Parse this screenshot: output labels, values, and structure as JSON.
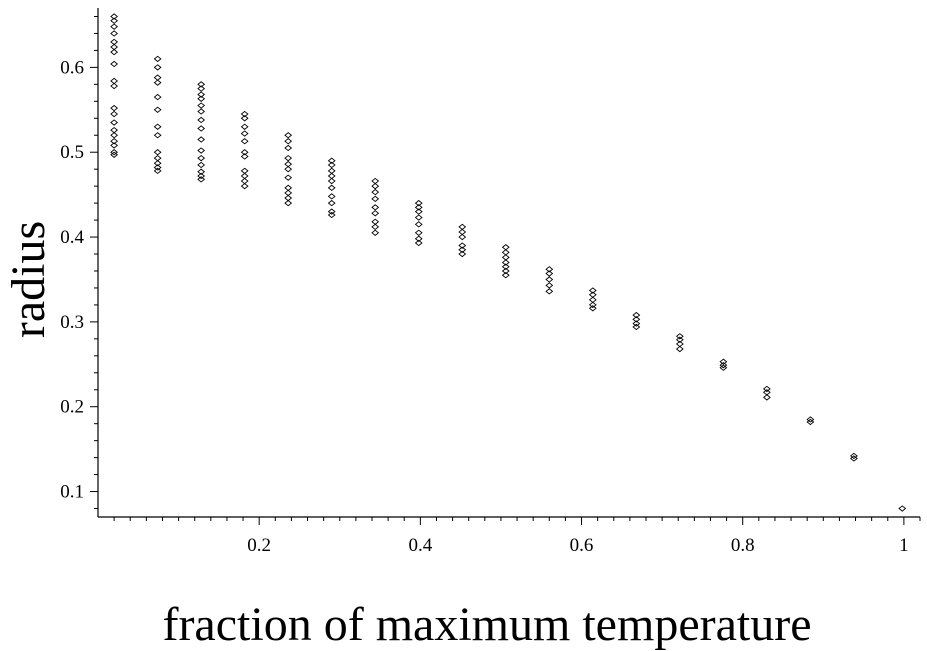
{
  "chart_data": {
    "type": "scatter",
    "xlabel": "fraction of maximum temperature",
    "ylabel": "radius",
    "xlim": [
      0.0,
      1.02
    ],
    "ylim": [
      0.07,
      0.67
    ],
    "x_ticks": [
      0.2,
      0.4,
      0.6,
      0.8,
      1.0
    ],
    "x_tick_labels": [
      "0.2",
      "0.4",
      "0.6",
      "0.8",
      "1"
    ],
    "y_ticks": [
      0.1,
      0.2,
      0.3,
      0.4,
      0.5,
      0.6
    ],
    "y_tick_labels": [
      "0.1",
      "0.2",
      "0.3",
      "0.4",
      "0.5",
      "0.6"
    ],
    "grid": false,
    "marker": "diamond",
    "series": [
      {
        "points": [
          {
            "x": 0.02,
            "y": 0.66
          },
          {
            "x": 0.02,
            "y": 0.655
          },
          {
            "x": 0.02,
            "y": 0.648
          },
          {
            "x": 0.02,
            "y": 0.64
          },
          {
            "x": 0.02,
            "y": 0.63
          },
          {
            "x": 0.02,
            "y": 0.624
          },
          {
            "x": 0.02,
            "y": 0.618
          },
          {
            "x": 0.02,
            "y": 0.604
          },
          {
            "x": 0.02,
            "y": 0.584
          },
          {
            "x": 0.02,
            "y": 0.578
          },
          {
            "x": 0.02,
            "y": 0.552
          },
          {
            "x": 0.02,
            "y": 0.545
          },
          {
            "x": 0.02,
            "y": 0.535
          },
          {
            "x": 0.02,
            "y": 0.526
          },
          {
            "x": 0.02,
            "y": 0.52
          },
          {
            "x": 0.02,
            "y": 0.513
          },
          {
            "x": 0.02,
            "y": 0.508
          },
          {
            "x": 0.02,
            "y": 0.5
          },
          {
            "x": 0.02,
            "y": 0.497
          },
          {
            "x": 0.074,
            "y": 0.61
          },
          {
            "x": 0.074,
            "y": 0.6
          },
          {
            "x": 0.074,
            "y": 0.588
          },
          {
            "x": 0.074,
            "y": 0.582
          },
          {
            "x": 0.074,
            "y": 0.565
          },
          {
            "x": 0.074,
            "y": 0.55
          },
          {
            "x": 0.074,
            "y": 0.53
          },
          {
            "x": 0.074,
            "y": 0.52
          },
          {
            "x": 0.074,
            "y": 0.5
          },
          {
            "x": 0.074,
            "y": 0.493
          },
          {
            "x": 0.074,
            "y": 0.487
          },
          {
            "x": 0.074,
            "y": 0.482
          },
          {
            "x": 0.074,
            "y": 0.478
          },
          {
            "x": 0.128,
            "y": 0.58
          },
          {
            "x": 0.128,
            "y": 0.575
          },
          {
            "x": 0.128,
            "y": 0.568
          },
          {
            "x": 0.128,
            "y": 0.563
          },
          {
            "x": 0.128,
            "y": 0.555
          },
          {
            "x": 0.128,
            "y": 0.548
          },
          {
            "x": 0.128,
            "y": 0.538
          },
          {
            "x": 0.128,
            "y": 0.528
          },
          {
            "x": 0.128,
            "y": 0.515
          },
          {
            "x": 0.128,
            "y": 0.502
          },
          {
            "x": 0.128,
            "y": 0.493
          },
          {
            "x": 0.128,
            "y": 0.485
          },
          {
            "x": 0.128,
            "y": 0.477
          },
          {
            "x": 0.128,
            "y": 0.472
          },
          {
            "x": 0.128,
            "y": 0.468
          },
          {
            "x": 0.182,
            "y": 0.545
          },
          {
            "x": 0.182,
            "y": 0.54
          },
          {
            "x": 0.182,
            "y": 0.53
          },
          {
            "x": 0.182,
            "y": 0.522
          },
          {
            "x": 0.182,
            "y": 0.513
          },
          {
            "x": 0.182,
            "y": 0.5
          },
          {
            "x": 0.182,
            "y": 0.495
          },
          {
            "x": 0.182,
            "y": 0.478
          },
          {
            "x": 0.182,
            "y": 0.472
          },
          {
            "x": 0.182,
            "y": 0.466
          },
          {
            "x": 0.182,
            "y": 0.46
          },
          {
            "x": 0.236,
            "y": 0.52
          },
          {
            "x": 0.236,
            "y": 0.513
          },
          {
            "x": 0.236,
            "y": 0.505
          },
          {
            "x": 0.236,
            "y": 0.493
          },
          {
            "x": 0.236,
            "y": 0.486
          },
          {
            "x": 0.236,
            "y": 0.48
          },
          {
            "x": 0.236,
            "y": 0.47
          },
          {
            "x": 0.236,
            "y": 0.458
          },
          {
            "x": 0.236,
            "y": 0.452
          },
          {
            "x": 0.236,
            "y": 0.446
          },
          {
            "x": 0.236,
            "y": 0.44
          },
          {
            "x": 0.29,
            "y": 0.49
          },
          {
            "x": 0.29,
            "y": 0.485
          },
          {
            "x": 0.29,
            "y": 0.478
          },
          {
            "x": 0.29,
            "y": 0.472
          },
          {
            "x": 0.29,
            "y": 0.466
          },
          {
            "x": 0.29,
            "y": 0.458
          },
          {
            "x": 0.29,
            "y": 0.448
          },
          {
            "x": 0.29,
            "y": 0.44
          },
          {
            "x": 0.29,
            "y": 0.43
          },
          {
            "x": 0.29,
            "y": 0.426
          },
          {
            "x": 0.344,
            "y": 0.466
          },
          {
            "x": 0.344,
            "y": 0.46
          },
          {
            "x": 0.344,
            "y": 0.453
          },
          {
            "x": 0.344,
            "y": 0.445
          },
          {
            "x": 0.344,
            "y": 0.435
          },
          {
            "x": 0.344,
            "y": 0.428
          },
          {
            "x": 0.344,
            "y": 0.418
          },
          {
            "x": 0.344,
            "y": 0.412
          },
          {
            "x": 0.344,
            "y": 0.405
          },
          {
            "x": 0.398,
            "y": 0.44
          },
          {
            "x": 0.398,
            "y": 0.435
          },
          {
            "x": 0.398,
            "y": 0.43
          },
          {
            "x": 0.398,
            "y": 0.423
          },
          {
            "x": 0.398,
            "y": 0.415
          },
          {
            "x": 0.398,
            "y": 0.405
          },
          {
            "x": 0.398,
            "y": 0.398
          },
          {
            "x": 0.398,
            "y": 0.393
          },
          {
            "x": 0.452,
            "y": 0.412
          },
          {
            "x": 0.452,
            "y": 0.406
          },
          {
            "x": 0.452,
            "y": 0.4
          },
          {
            "x": 0.452,
            "y": 0.39
          },
          {
            "x": 0.452,
            "y": 0.385
          },
          {
            "x": 0.452,
            "y": 0.38
          },
          {
            "x": 0.506,
            "y": 0.388
          },
          {
            "x": 0.506,
            "y": 0.382
          },
          {
            "x": 0.506,
            "y": 0.376
          },
          {
            "x": 0.506,
            "y": 0.37
          },
          {
            "x": 0.506,
            "y": 0.365
          },
          {
            "x": 0.506,
            "y": 0.36
          },
          {
            "x": 0.506,
            "y": 0.355
          },
          {
            "x": 0.56,
            "y": 0.362
          },
          {
            "x": 0.56,
            "y": 0.357
          },
          {
            "x": 0.56,
            "y": 0.35
          },
          {
            "x": 0.56,
            "y": 0.343
          },
          {
            "x": 0.56,
            "y": 0.336
          },
          {
            "x": 0.614,
            "y": 0.337
          },
          {
            "x": 0.614,
            "y": 0.332
          },
          {
            "x": 0.614,
            "y": 0.326
          },
          {
            "x": 0.614,
            "y": 0.32
          },
          {
            "x": 0.614,
            "y": 0.316
          },
          {
            "x": 0.668,
            "y": 0.308
          },
          {
            "x": 0.668,
            "y": 0.303
          },
          {
            "x": 0.668,
            "y": 0.298
          },
          {
            "x": 0.668,
            "y": 0.294
          },
          {
            "x": 0.722,
            "y": 0.283
          },
          {
            "x": 0.722,
            "y": 0.279
          },
          {
            "x": 0.722,
            "y": 0.274
          },
          {
            "x": 0.722,
            "y": 0.268
          },
          {
            "x": 0.776,
            "y": 0.253
          },
          {
            "x": 0.776,
            "y": 0.249
          },
          {
            "x": 0.776,
            "y": 0.246
          },
          {
            "x": 0.83,
            "y": 0.221
          },
          {
            "x": 0.83,
            "y": 0.217
          },
          {
            "x": 0.83,
            "y": 0.211
          },
          {
            "x": 0.884,
            "y": 0.185
          },
          {
            "x": 0.884,
            "y": 0.182
          },
          {
            "x": 0.938,
            "y": 0.142
          },
          {
            "x": 0.938,
            "y": 0.139
          },
          {
            "x": 0.998,
            "y": 0.08
          }
        ]
      }
    ]
  }
}
